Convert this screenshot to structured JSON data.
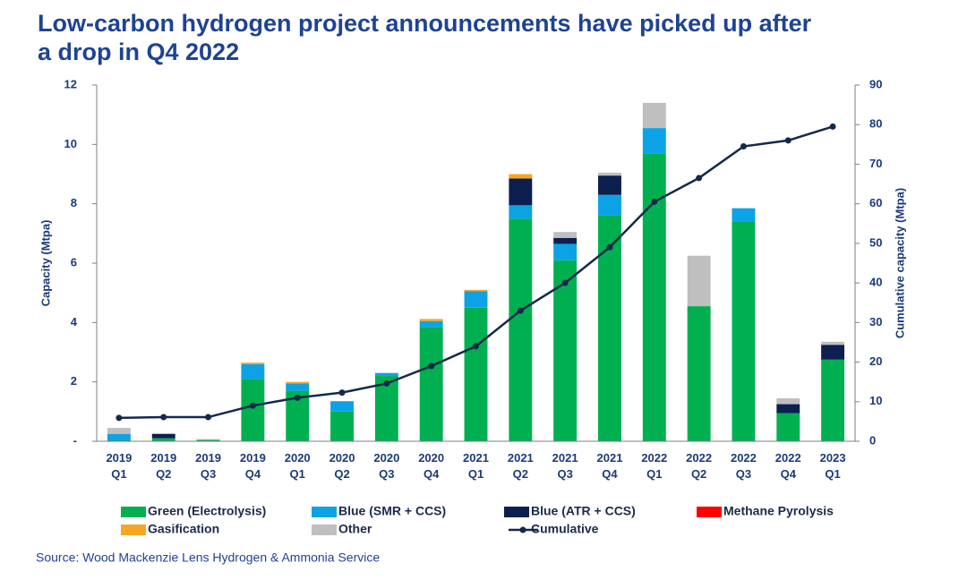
{
  "chart_data": {
    "type": "bar",
    "stacked": true,
    "title": [
      "Low-carbon hydrogen project announcements have picked up after",
      "a drop in Q4 2022"
    ],
    "ylabel": "Capacity (Mtpa)",
    "y2label": "Cumulative capacity (Mtpa)",
    "source": "Source: Wood Mackenzie Lens Hydrogen & Ammonia Service",
    "categories": [
      [
        "2019",
        "Q1"
      ],
      [
        "2019",
        "Q2"
      ],
      [
        "2019",
        "Q3"
      ],
      [
        "2019",
        "Q4"
      ],
      [
        "2020",
        "Q1"
      ],
      [
        "2020",
        "Q2"
      ],
      [
        "2020",
        "Q3"
      ],
      [
        "2020",
        "Q4"
      ],
      [
        "2021",
        "Q1"
      ],
      [
        "2021",
        "Q2"
      ],
      [
        "2021",
        "Q3"
      ],
      [
        "2021",
        "Q4"
      ],
      [
        "2022",
        "Q1"
      ],
      [
        "2022",
        "Q2"
      ],
      [
        "2022",
        "Q3"
      ],
      [
        "2022",
        "Q4"
      ],
      [
        "2023",
        "Q1"
      ]
    ],
    "ylim": [
      0,
      12
    ],
    "yticks": [
      {
        "value": 0,
        "label": "-"
      },
      2,
      4,
      6,
      8,
      10,
      12
    ],
    "y2lim": [
      0,
      90
    ],
    "y2ticks": [
      0,
      10,
      20,
      30,
      40,
      50,
      60,
      70,
      80,
      90
    ],
    "series": [
      {
        "name": "Green (Electrolysis)",
        "color": "#00b050",
        "values": [
          0.03,
          0.1,
          0.05,
          2.1,
          1.7,
          1.0,
          2.2,
          3.85,
          4.5,
          7.5,
          6.1,
          7.6,
          9.7,
          4.55,
          7.4,
          0.95,
          2.75
        ]
      },
      {
        "name": "Blue (SMR + CCS)",
        "color": "#0ca3e6",
        "values": [
          0.22,
          0,
          0,
          0.5,
          0.25,
          0.35,
          0.1,
          0.2,
          0.55,
          0.45,
          0.55,
          0.7,
          0.85,
          0,
          0.45,
          0,
          0
        ]
      },
      {
        "name": "Blue (ATR + CCS)",
        "color": "#0c1f4f",
        "values": [
          0,
          0.15,
          0,
          0,
          0,
          0,
          0,
          0,
          0,
          0.9,
          0.2,
          0.65,
          0,
          0,
          0,
          0.3,
          0.5
        ]
      },
      {
        "name": "Methane Pyrolysis",
        "color": "#ff0000",
        "values": [
          0,
          0,
          0,
          0,
          0,
          0,
          0,
          0,
          0,
          0,
          0,
          0,
          0,
          0,
          0,
          0,
          0
        ]
      },
      {
        "name": "Gasification",
        "color": "#f5a623",
        "values": [
          0,
          0,
          0,
          0.05,
          0.05,
          0,
          0,
          0.07,
          0.05,
          0.15,
          0,
          0,
          0,
          0,
          0,
          0,
          0
        ]
      },
      {
        "name": "Other",
        "color": "#bfbfbf",
        "values": [
          0.2,
          0,
          0.02,
          0,
          0,
          0,
          0,
          0,
          0,
          0,
          0.2,
          0.1,
          0.85,
          1.7,
          0,
          0.2,
          0.1
        ]
      },
      {
        "name": "Cumulative",
        "color": "#13294b",
        "type": "line",
        "axis": "y2",
        "values": [
          5.9,
          6.1,
          6.1,
          9,
          11,
          12.3,
          14.6,
          19,
          24,
          33,
          40,
          49,
          60.5,
          66.5,
          74.5,
          76,
          79.5
        ]
      }
    ]
  }
}
